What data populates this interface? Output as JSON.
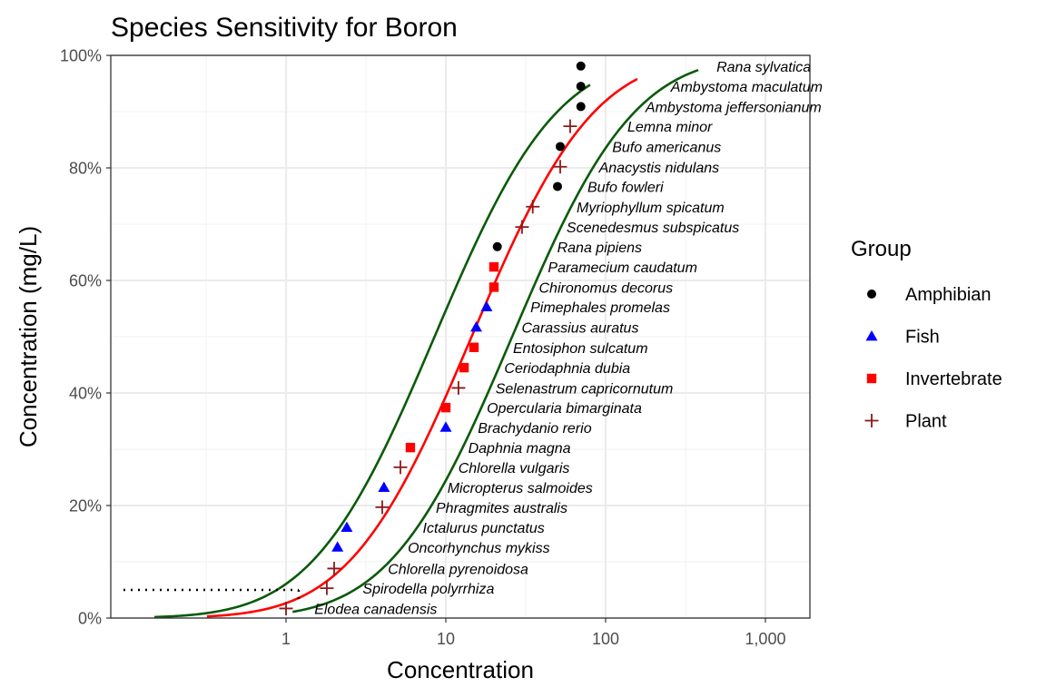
{
  "chart_data": {
    "type": "scatter",
    "title": "Species Sensitivity for Boron",
    "xlabel": "Concentration",
    "ylabel": "Concentration (mg/L)",
    "x_scale": "log10",
    "xlim": [
      0.08,
      1900
    ],
    "ylim": [
      0,
      1
    ],
    "x_ticks": [
      1,
      10,
      100,
      1000
    ],
    "x_tick_labels": [
      "1",
      "10",
      "100",
      "1,000"
    ],
    "y_ticks": [
      0,
      0.2,
      0.4,
      0.6,
      0.8,
      1.0
    ],
    "y_tick_labels": [
      "0%",
      "20%",
      "40%",
      "60%",
      "80%",
      "100%"
    ],
    "grid": true,
    "legend": {
      "title": "Group",
      "position": "right",
      "entries": [
        {
          "name": "Amphibian",
          "color": "#000000",
          "shape": "circle"
        },
        {
          "name": "Fish",
          "color": "#0000ff",
          "shape": "triangle"
        },
        {
          "name": "Invertebrate",
          "color": "#ff0000",
          "shape": "square"
        },
        {
          "name": "Plant",
          "color": "#8b1a1a",
          "shape": "plus"
        }
      ]
    },
    "points": [
      {
        "species": "Elodea canadensis",
        "group": "Plant",
        "x": 1.0,
        "y": 0.017
      },
      {
        "species": "Spirodella polyrrhiza",
        "group": "Plant",
        "x": 1.8,
        "y": 0.053
      },
      {
        "species": "Chlorella pyrenoidosa",
        "group": "Plant",
        "x": 2.0,
        "y": 0.088
      },
      {
        "species": "Oncorhynchus mykiss",
        "group": "Fish",
        "x": 2.1,
        "y": 0.126
      },
      {
        "species": "Ictalurus punctatus",
        "group": "Fish",
        "x": 2.4,
        "y": 0.161
      },
      {
        "species": "Phragmites australis",
        "group": "Plant",
        "x": 4.0,
        "y": 0.197
      },
      {
        "species": "Micropterus salmoides",
        "group": "Fish",
        "x": 4.1,
        "y": 0.232
      },
      {
        "species": "Chlorella vulgaris",
        "group": "Plant",
        "x": 5.2,
        "y": 0.268
      },
      {
        "species": "Daphnia magna",
        "group": "Invertebrate",
        "x": 6.0,
        "y": 0.303
      },
      {
        "species": "Brachydanio rerio",
        "group": "Fish",
        "x": 10,
        "y": 0.339
      },
      {
        "species": "Opercularia bimarginata",
        "group": "Invertebrate",
        "x": 10,
        "y": 0.374
      },
      {
        "species": "Selenastrum capricornutum",
        "group": "Plant",
        "x": 12,
        "y": 0.409
      },
      {
        "species": "Ceriodaphnia dubia",
        "group": "Invertebrate",
        "x": 13,
        "y": 0.445
      },
      {
        "species": "Entosiphon sulcatum",
        "group": "Invertebrate",
        "x": 15,
        "y": 0.481
      },
      {
        "species": "Carassius auratus",
        "group": "Fish",
        "x": 15.5,
        "y": 0.517
      },
      {
        "species": "Pimephales promelas",
        "group": "Fish",
        "x": 18,
        "y": 0.553
      },
      {
        "species": "Chironomus decorus",
        "group": "Invertebrate",
        "x": 20,
        "y": 0.588
      },
      {
        "species": "Paramecium caudatum",
        "group": "Invertebrate",
        "x": 20,
        "y": 0.624
      },
      {
        "species": "Rana pipiens",
        "group": "Amphibian",
        "x": 21,
        "y": 0.66
      },
      {
        "species": "Scenedesmus subspicatus",
        "group": "Plant",
        "x": 30,
        "y": 0.695
      },
      {
        "species": "Myriophyllum spicatum",
        "group": "Plant",
        "x": 35,
        "y": 0.731
      },
      {
        "species": "Bufo fowleri",
        "group": "Amphibian",
        "x": 50,
        "y": 0.767
      },
      {
        "species": "Anacystis nidulans",
        "group": "Plant",
        "x": 52,
        "y": 0.802
      },
      {
        "species": "Bufo americanus",
        "group": "Amphibian",
        "x": 52,
        "y": 0.838
      },
      {
        "species": "Lemna minor",
        "group": "Plant",
        "x": 60,
        "y": 0.874
      },
      {
        "species": "Ambystoma jeffersonianum",
        "group": "Amphibian",
        "x": 70,
        "y": 0.909
      },
      {
        "species": "Ambystoma maculatum",
        "group": "Amphibian",
        "x": 70,
        "y": 0.945
      },
      {
        "species": "Rana sylvatica",
        "group": "Amphibian",
        "x": 70,
        "y": 0.981
      }
    ],
    "fit_curve": {
      "distribution": "lognormal",
      "color": "#ff0000",
      "median": 14.5,
      "log10_sd": 0.6,
      "x_range": [
        0.32,
        158
      ]
    },
    "confidence_bounds": {
      "color": "#0a5a0a",
      "lower": {
        "median": 26,
        "x_range": [
          1.1,
          380
        ]
      },
      "upper": {
        "median": 8.5,
        "x_range": [
          0.15,
          80
        ]
      }
    },
    "reference_line": {
      "y": 0.05,
      "x_end": 1.2,
      "style": "dotted"
    }
  }
}
